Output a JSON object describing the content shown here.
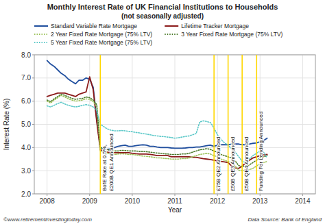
{
  "chart_data": {
    "type": "line",
    "title": "Monthly Interest Rate of UK Financial Institutions to Households",
    "subtitle": "(not seasonally adjusted)",
    "x_label": "Year",
    "y_label": "Interest Rate (%)",
    "x": [
      2008.0,
      2008.083,
      2008.167,
      2008.25,
      2008.333,
      2008.417,
      2008.5,
      2008.583,
      2008.667,
      2008.75,
      2008.833,
      2008.917,
      2009.0,
      2009.083,
      2009.167,
      2009.25,
      2009.333,
      2009.417,
      2009.5,
      2009.583,
      2009.667,
      2009.75,
      2009.833,
      2009.917,
      2010.0,
      2010.083,
      2010.167,
      2010.25,
      2010.333,
      2010.417,
      2010.5,
      2010.583,
      2010.667,
      2010.75,
      2010.833,
      2010.917,
      2011.0,
      2011.083,
      2011.167,
      2011.25,
      2011.333,
      2011.417,
      2011.5,
      2011.583,
      2011.667,
      2011.75,
      2011.833,
      2011.917,
      2012.0,
      2012.083,
      2012.167,
      2012.25,
      2012.333,
      2012.417,
      2012.5,
      2012.583,
      2012.667,
      2012.75,
      2012.833,
      2012.917,
      2013.0,
      2013.083,
      2013.167
    ],
    "series": [
      {
        "name": "Standard Variable Rate Mortgage",
        "color": "#1f4e9e",
        "line_style": "solid",
        "values": [
          7.75,
          7.6,
          7.5,
          7.35,
          7.2,
          7.1,
          6.95,
          6.85,
          6.75,
          6.9,
          6.9,
          7.0,
          6.95,
          6.6,
          5.2,
          4.0,
          3.95,
          3.92,
          3.95,
          4.0,
          4.05,
          4.08,
          4.1,
          4.05,
          4.05,
          4.08,
          4.1,
          4.12,
          4.1,
          4.05,
          4.05,
          4.02,
          4.0,
          4.0,
          4.0,
          3.98,
          3.97,
          3.97,
          3.97,
          3.98,
          4.0,
          4.0,
          4.02,
          4.02,
          4.05,
          4.08,
          4.1,
          4.05,
          4.1,
          4.12,
          4.12,
          4.12,
          4.15,
          4.15,
          4.15,
          4.12,
          4.12,
          4.15,
          4.18,
          4.2,
          4.25,
          4.3,
          4.4
        ]
      },
      {
        "name": "Lifetime Tracker Mortgage",
        "color": "#8B1a1a",
        "line_style": "solid",
        "values": [
          6.2,
          6.25,
          6.3,
          6.35,
          6.35,
          6.35,
          6.3,
          6.25,
          6.2,
          6.3,
          6.35,
          6.4,
          7.05,
          6.5,
          5.1,
          3.9,
          3.85,
          3.8,
          3.78,
          3.78,
          3.78,
          3.78,
          3.78,
          3.78,
          3.75,
          3.73,
          3.72,
          3.72,
          3.72,
          3.7,
          3.68,
          3.65,
          3.65,
          3.65,
          3.65,
          3.6,
          3.6,
          3.6,
          3.6,
          3.6,
          3.6,
          3.58,
          3.58,
          3.55,
          3.52,
          3.5,
          3.48,
          3.45,
          3.42,
          3.4,
          3.38,
          3.35,
          3.2,
          3.12,
          3.1,
          3.2,
          3.35,
          3.45,
          3.55,
          3.6,
          3.65,
          3.68,
          3.7
        ]
      },
      {
        "name": "2 Year Fixed Rate Mortgage (75% LTV)",
        "color": "#9dc35c",
        "line_style": "dotted",
        "values": [
          6.0,
          5.92,
          6.05,
          6.15,
          6.25,
          6.18,
          6.1,
          6.05,
          6.0,
          6.02,
          6.05,
          6.1,
          6.08,
          5.98,
          5.75,
          3.85,
          3.8,
          3.75,
          3.72,
          3.7,
          3.72,
          3.73,
          3.72,
          3.7,
          3.7,
          3.68,
          3.65,
          3.63,
          3.62,
          3.6,
          3.58,
          3.55,
          3.55,
          3.53,
          3.52,
          3.5,
          3.5,
          3.5,
          3.52,
          3.52,
          3.55,
          3.6,
          3.65,
          3.7,
          3.72,
          3.75,
          3.72,
          3.65,
          3.6,
          3.5,
          3.45,
          3.4,
          3.35,
          3.2,
          3.02,
          3.0,
          3.0,
          3.05,
          3.1,
          3.2,
          3.3,
          3.35,
          3.4
        ]
      },
      {
        "name": "3 Year Fixed Rate Mortgage (75% LTV)",
        "color": "#4a7a2a",
        "line_style": "dotted",
        "values": [
          6.05,
          5.98,
          6.1,
          6.2,
          6.3,
          6.25,
          6.18,
          6.12,
          6.08,
          6.1,
          6.12,
          6.18,
          6.15,
          6.05,
          5.85,
          4.0,
          3.95,
          3.9,
          3.88,
          3.85,
          3.85,
          3.88,
          3.87,
          3.85,
          3.85,
          3.85,
          3.83,
          3.83,
          3.82,
          3.8,
          3.78,
          3.76,
          3.75,
          3.73,
          3.72,
          3.7,
          3.7,
          3.7,
          3.72,
          3.72,
          3.75,
          3.8,
          3.85,
          3.9,
          3.92,
          3.95,
          3.92,
          3.85,
          3.8,
          3.7,
          3.65,
          3.6,
          3.55,
          3.42,
          3.22,
          3.18,
          3.2,
          3.25,
          3.35,
          3.45,
          3.55,
          3.6,
          3.65
        ]
      },
      {
        "name": "5 Year Fixed Rate Mortgage (75% LTV)",
        "color": "#5bc8c8",
        "line_style": "dotted",
        "values": [
          5.8,
          5.75,
          5.82,
          5.9,
          5.95,
          5.88,
          5.82,
          5.78,
          5.75,
          5.78,
          5.82,
          5.85,
          5.82,
          5.75,
          5.6,
          5.0,
          4.9,
          4.8,
          4.75,
          4.72,
          4.72,
          4.73,
          4.72,
          4.7,
          4.68,
          4.65,
          4.63,
          4.6,
          4.58,
          4.55,
          4.52,
          4.5,
          4.48,
          4.47,
          4.45,
          4.43,
          4.4,
          4.42,
          4.45,
          4.48,
          4.5,
          4.55,
          4.6,
          5.1,
          5.15,
          5.12,
          5.08,
          4.85,
          4.55,
          4.35,
          4.2,
          4.1,
          3.95,
          3.8,
          3.6,
          3.4,
          3.35,
          3.5,
          3.65,
          3.75,
          3.85,
          3.8,
          3.55
        ]
      }
    ],
    "xlim": [
      2007.7,
      2014.3
    ],
    "ylim": [
      2.0,
      8.0
    ],
    "xticks": [
      2008,
      2009,
      2010,
      2011,
      2012,
      2013,
      2014
    ],
    "yticks": [
      {
        "value": 2.0,
        "label": "2.0"
      },
      {
        "value": 3.0,
        "label": "3.0"
      },
      {
        "value": 4.0,
        "label": "4.0"
      },
      {
        "value": 5.0,
        "label": "5.0"
      },
      {
        "value": 6.0,
        "label": "6.0"
      },
      {
        "value": 7.0,
        "label": "7.0"
      },
      {
        "value": 8.0,
        "label": "8.0"
      }
    ],
    "grid": true,
    "legend": "top",
    "annotations": [
      {
        "x": 2009.25,
        "text": "BofE Rate at 0.5%,\n£200B QE1 Announced",
        "color": "#FFD700"
      },
      {
        "x": 2011.92,
        "text": "£75B QE2 Announced",
        "color": "#FFD700"
      },
      {
        "x": 2012.25,
        "text": "£50B QE3 Announced",
        "color": "#FFD700"
      },
      {
        "x": 2012.58,
        "text": "£50B QE4 Announced",
        "color": "#FFD700"
      },
      {
        "x": 2012.92,
        "text": "Funding For Lending Announced",
        "color": "#FFD700"
      },
      {
        "text": "©www.retirementinvestingtoday.com"
      },
      {
        "text": "Data Source: Bank of England"
      }
    ]
  }
}
